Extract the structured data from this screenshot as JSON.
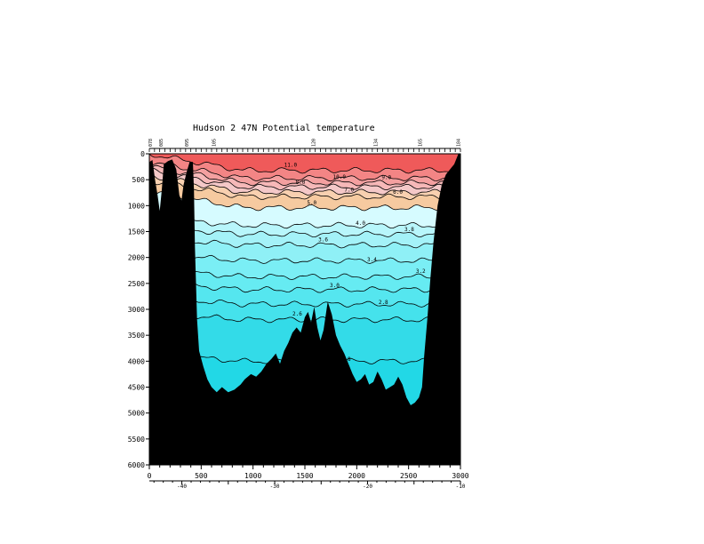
{
  "chart_data": {
    "type": "heatmap",
    "title": "Hudson 2 47N Potential temperature",
    "xlabel": "",
    "ylabel": "",
    "x_ticks": [
      0,
      500,
      1000,
      1500,
      2000,
      2500,
      3000
    ],
    "xlim": [
      0,
      3000
    ],
    "y_ticks": [
      0,
      500,
      1000,
      1500,
      2000,
      2500,
      3000,
      3500,
      4000,
      4500,
      5000,
      5500,
      6000
    ],
    "ylim": [
      0,
      6000
    ],
    "y_inverted": true,
    "longitude_ticks": [
      "-40",
      "-30",
      "-20",
      "-10"
    ],
    "longitude_values": [
      -40,
      -30,
      -20,
      -10
    ],
    "top_station_labels": [
      "078",
      "085",
      "095",
      "105",
      "120",
      "134",
      "165",
      "184"
    ],
    "top_station_x": [
      10,
      110,
      360,
      620,
      1580,
      2180,
      2610,
      2980
    ],
    "contours": [
      {
        "label": "11.0",
        "depth": 320,
        "color": "#ef5a5a"
      },
      {
        "label": "10.0",
        "depth": 470,
        "color": "#f38585"
      },
      {
        "label": "9.0",
        "depth": 560,
        "color": "#f4a0a0"
      },
      {
        "label": "8.0",
        "depth": 640,
        "color": "#f6b8b8"
      },
      {
        "label": "7.0",
        "depth": 740,
        "color": "#f4c8c8"
      },
      {
        "label": "6.0",
        "depth": 830,
        "color": "#f8d0b0"
      },
      {
        "label": "5.0",
        "depth": 1040,
        "color": "#f6caa0"
      },
      {
        "label": "4.0",
        "depth": 1380,
        "color": "#d6fbff"
      },
      {
        "label": "3.8",
        "depth": 1550,
        "color": "#b8f6fb"
      },
      {
        "label": "3.6",
        "depth": 1760,
        "color": "#a4f2f8"
      },
      {
        "label": "3.4",
        "depth": 2060,
        "color": "#8ff0f6"
      },
      {
        "label": "3.2",
        "depth": 2370,
        "color": "#7aeef5"
      },
      {
        "label": "3.0",
        "depth": 2620,
        "color": "#66ebf2"
      },
      {
        "label": "2.8",
        "depth": 2900,
        "color": "#55e6ef"
      },
      {
        "label": "2.6",
        "depth": 3200,
        "color": "#45e2ec"
      },
      {
        "label": "1.8",
        "depth": 4000,
        "color": "#33dbe8"
      }
    ],
    "bottom_profile": [
      [
        0,
        160
      ],
      [
        30,
        120
      ],
      [
        55,
        500
      ],
      [
        80,
        800
      ],
      [
        100,
        1100
      ],
      [
        120,
        700
      ],
      [
        140,
        200
      ],
      [
        180,
        140
      ],
      [
        220,
        110
      ],
      [
        260,
        300
      ],
      [
        290,
        800
      ],
      [
        310,
        900
      ],
      [
        330,
        600
      ],
      [
        360,
        350
      ],
      [
        390,
        150
      ],
      [
        420,
        160
      ],
      [
        430,
        700
      ],
      [
        440,
        1800
      ],
      [
        460,
        3200
      ],
      [
        480,
        3800
      ],
      [
        520,
        4100
      ],
      [
        560,
        4350
      ],
      [
        600,
        4500
      ],
      [
        650,
        4600
      ],
      [
        700,
        4500
      ],
      [
        760,
        4600
      ],
      [
        820,
        4550
      ],
      [
        880,
        4450
      ],
      [
        920,
        4350
      ],
      [
        980,
        4250
      ],
      [
        1030,
        4300
      ],
      [
        1080,
        4200
      ],
      [
        1130,
        4050
      ],
      [
        1180,
        3950
      ],
      [
        1220,
        3850
      ],
      [
        1260,
        4050
      ],
      [
        1300,
        3800
      ],
      [
        1340,
        3650
      ],
      [
        1380,
        3450
      ],
      [
        1420,
        3350
      ],
      [
        1460,
        3450
      ],
      [
        1500,
        3150
      ],
      [
        1530,
        3050
      ],
      [
        1560,
        3250
      ],
      [
        1590,
        2950
      ],
      [
        1620,
        3350
      ],
      [
        1650,
        3600
      ],
      [
        1680,
        3400
      ],
      [
        1720,
        2850
      ],
      [
        1760,
        3100
      ],
      [
        1800,
        3500
      ],
      [
        1840,
        3700
      ],
      [
        1880,
        3850
      ],
      [
        1920,
        4050
      ],
      [
        1960,
        4250
      ],
      [
        2000,
        4400
      ],
      [
        2040,
        4350
      ],
      [
        2080,
        4250
      ],
      [
        2120,
        4450
      ],
      [
        2160,
        4400
      ],
      [
        2200,
        4200
      ],
      [
        2240,
        4350
      ],
      [
        2280,
        4550
      ],
      [
        2320,
        4500
      ],
      [
        2360,
        4450
      ],
      [
        2400,
        4300
      ],
      [
        2440,
        4450
      ],
      [
        2480,
        4700
      ],
      [
        2520,
        4850
      ],
      [
        2560,
        4800
      ],
      [
        2600,
        4700
      ],
      [
        2630,
        4500
      ],
      [
        2650,
        3900
      ],
      [
        2680,
        3200
      ],
      [
        2710,
        2400
      ],
      [
        2740,
        1700
      ],
      [
        2780,
        1000
      ],
      [
        2820,
        600
      ],
      [
        2860,
        400
      ],
      [
        2900,
        300
      ],
      [
        2940,
        200
      ],
      [
        2980,
        0
      ],
      [
        3000,
        0
      ]
    ]
  }
}
